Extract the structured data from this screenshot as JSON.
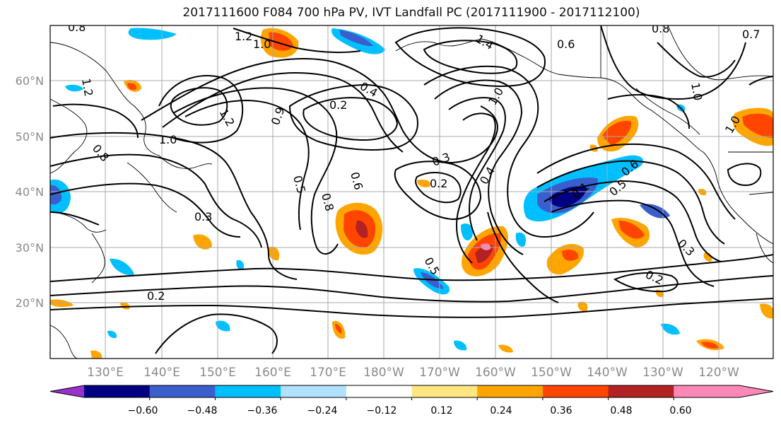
{
  "title": "2017111600 F084 700 hPa PV, IVT Landfall PC (2017111900 - 2017112100)",
  "lat_labels": [
    "60°N",
    "50°N",
    "40°N",
    "30°N",
    "20°N"
  ],
  "lon_labels": [
    "130°E",
    "140°E",
    "150°E",
    "160°E",
    "170°E",
    "180°W",
    "170°W",
    "160°W",
    "150°W",
    "140°W",
    "130°W",
    "120°W"
  ],
  "contour_labels": [
    "0.8",
    "1.2",
    "1.0",
    "0.8",
    "0.7",
    "0.6",
    "1.0",
    "1.4",
    "1.2",
    "1.0",
    "0.9",
    "0.4",
    "0.2",
    "1.2",
    "1.0",
    "0.8",
    "0.3",
    "0.2",
    "0.4",
    "0.3",
    "0.5",
    "0.8",
    "0.6",
    "0.5",
    "0.6",
    "0.3",
    "0.2",
    "0.2",
    "0.5",
    "1.0",
    "0.1"
  ],
  "colorbar": {
    "ticks": [
      "−0.60",
      "−0.48",
      "−0.36",
      "−0.24",
      "−0.12",
      "0.12",
      "0.24",
      "0.36",
      "0.48",
      "0.60"
    ],
    "colors": [
      "#9932cc",
      "#000080",
      "#3a5fcd",
      "#00bfff",
      "#b0e2ff",
      "#ffffff",
      "#ffe680",
      "#ffa500",
      "#ff4500",
      "#b22222",
      "#ff88b8",
      "#ff88b8"
    ]
  }
}
